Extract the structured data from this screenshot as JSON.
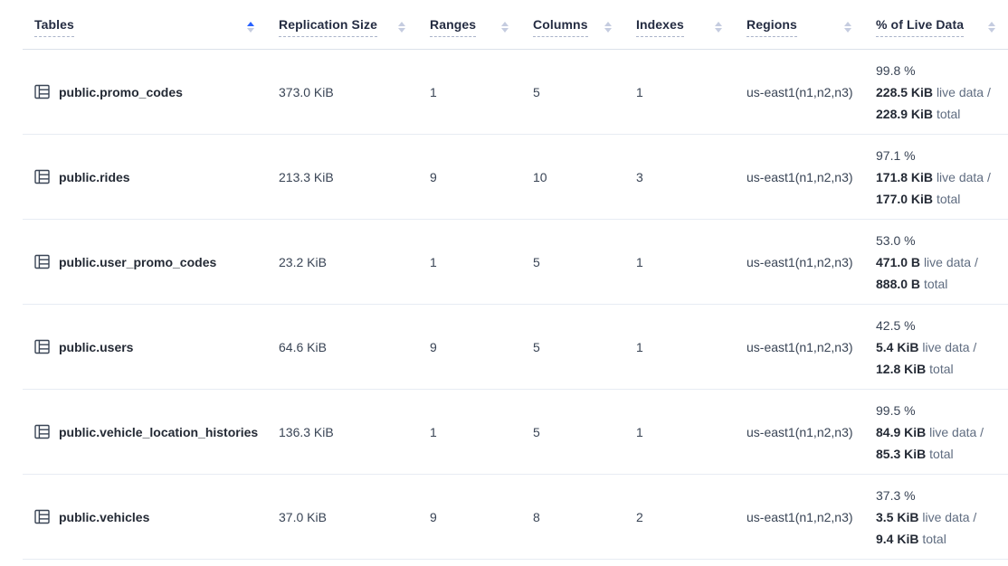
{
  "colors": {
    "accent_blue": "#2962ff",
    "header_text": "#242c42",
    "body_text": "#394455",
    "muted_text": "#5f6c80",
    "row_border": "#e7ecf3"
  },
  "table": {
    "columns": [
      {
        "label": "Tables",
        "sort": "asc"
      },
      {
        "label": "Replication Size",
        "sort": "none"
      },
      {
        "label": "Ranges",
        "sort": "none"
      },
      {
        "label": "Columns",
        "sort": "none"
      },
      {
        "label": "Indexes",
        "sort": "none"
      },
      {
        "label": "Regions",
        "sort": "none"
      },
      {
        "label": "% of Live Data",
        "sort": "none"
      }
    ],
    "live_data_labels": {
      "live": "live data /",
      "total": "total"
    },
    "rows": [
      {
        "name": "public.promo_codes",
        "replication_size": "373.0 KiB",
        "ranges": "1",
        "columns": "5",
        "indexes": "1",
        "regions": "us-east1(n1,n2,n3)",
        "live_percent": "99.8 %",
        "live_size": "228.5 KiB",
        "total_size": "228.9 KiB"
      },
      {
        "name": "public.rides",
        "replication_size": "213.3 KiB",
        "ranges": "9",
        "columns": "10",
        "indexes": "3",
        "regions": "us-east1(n1,n2,n3)",
        "live_percent": "97.1 %",
        "live_size": "171.8 KiB",
        "total_size": "177.0 KiB"
      },
      {
        "name": "public.user_promo_codes",
        "replication_size": "23.2 KiB",
        "ranges": "1",
        "columns": "5",
        "indexes": "1",
        "regions": "us-east1(n1,n2,n3)",
        "live_percent": "53.0 %",
        "live_size": "471.0 B",
        "total_size": "888.0 B"
      },
      {
        "name": "public.users",
        "replication_size": "64.6 KiB",
        "ranges": "9",
        "columns": "5",
        "indexes": "1",
        "regions": "us-east1(n1,n2,n3)",
        "live_percent": "42.5 %",
        "live_size": "5.4 KiB",
        "total_size": "12.8 KiB"
      },
      {
        "name": "public.vehicle_location_histories",
        "replication_size": "136.3 KiB",
        "ranges": "1",
        "columns": "5",
        "indexes": "1",
        "regions": "us-east1(n1,n2,n3)",
        "live_percent": "99.5 %",
        "live_size": "84.9 KiB",
        "total_size": "85.3 KiB"
      },
      {
        "name": "public.vehicles",
        "replication_size": "37.0 KiB",
        "ranges": "9",
        "columns": "8",
        "indexes": "2",
        "regions": "us-east1(n1,n2,n3)",
        "live_percent": "37.3 %",
        "live_size": "3.5 KiB",
        "total_size": "9.4 KiB"
      }
    ]
  }
}
